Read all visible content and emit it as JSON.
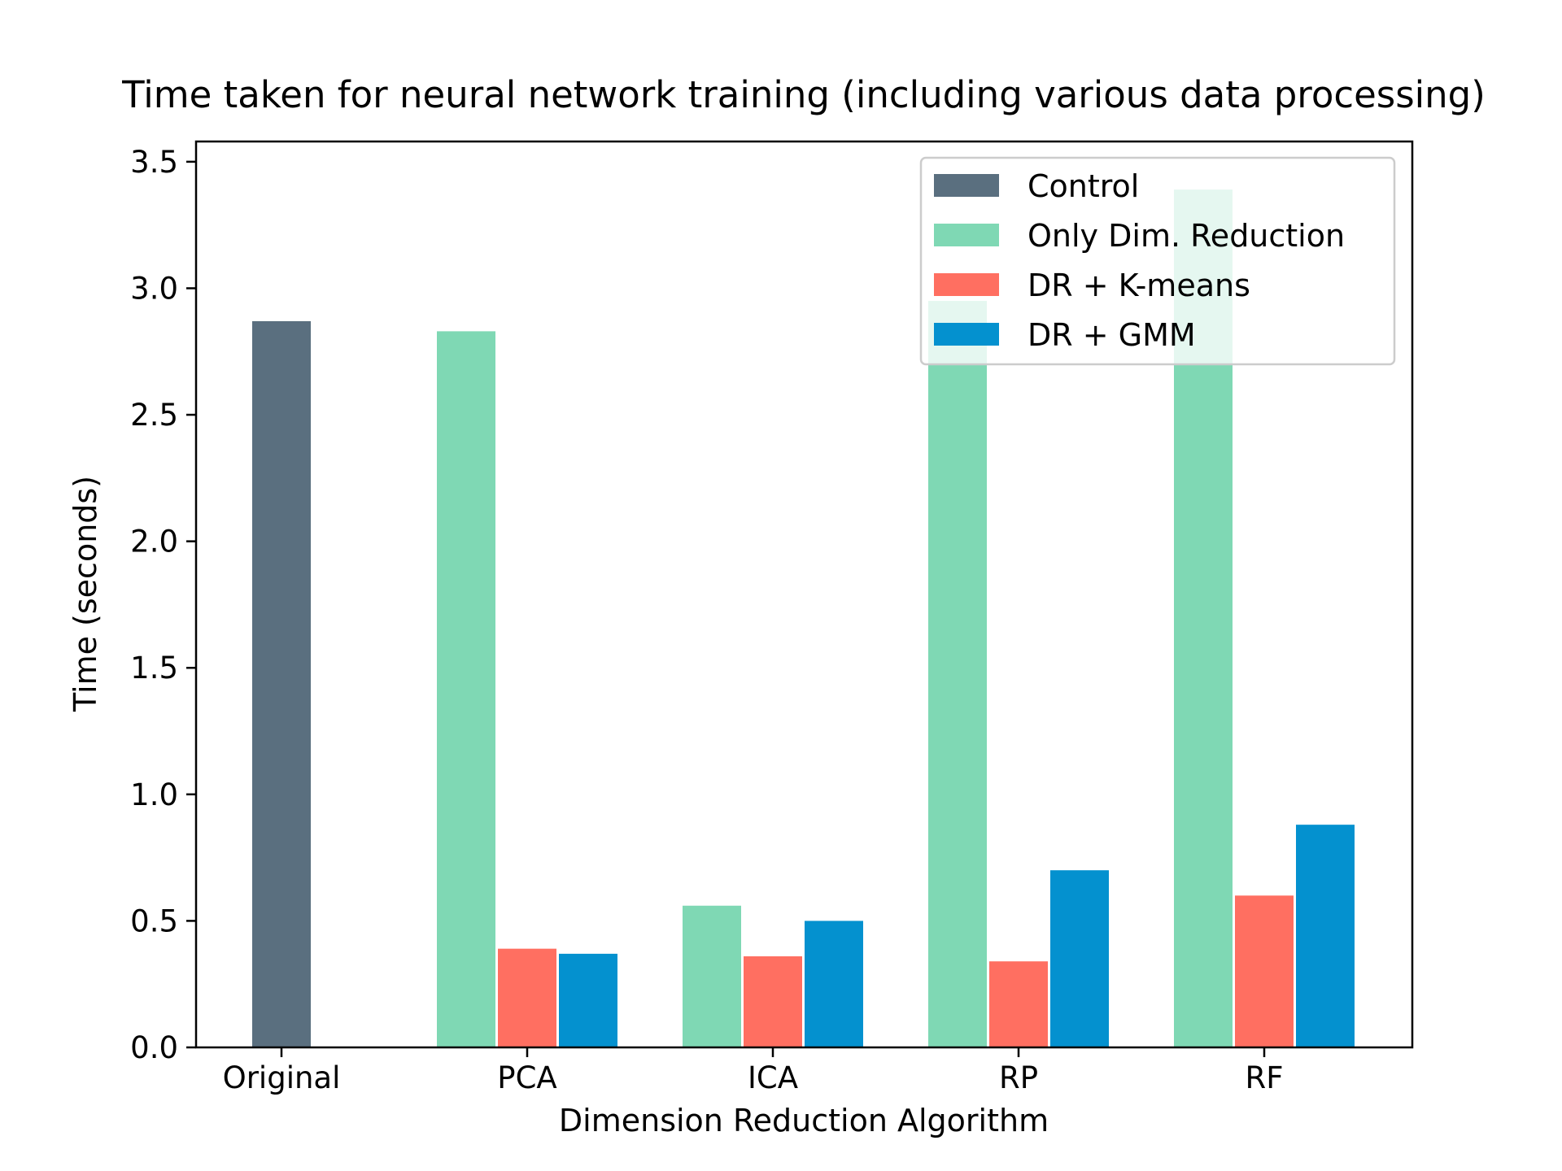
{
  "chart_data": {
    "type": "bar",
    "title": "Time taken for neural network training (including various data processing)",
    "xlabel": "Dimension Reduction Algorithm",
    "ylabel": "Time (seconds)",
    "categories": [
      "Original",
      "PCA",
      "ICA",
      "RP",
      "RF"
    ],
    "ylim": [
      0,
      3.58
    ],
    "yticks": [
      "0.0",
      "0.5",
      "1.0",
      "1.5",
      "2.0",
      "2.5",
      "3.0",
      "3.5"
    ],
    "grid": false,
    "legend_position": "top-right",
    "series": [
      {
        "name": "Control",
        "color": "#5a6f7f",
        "values": [
          2.87,
          null,
          null,
          null,
          null
        ]
      },
      {
        "name": "Only Dim. Reduction",
        "color": "#7fd8b4",
        "values": [
          null,
          2.83,
          0.56,
          2.95,
          3.39
        ]
      },
      {
        "name": "DR + K-means",
        "color": "#ff6f61",
        "values": [
          null,
          0.39,
          0.36,
          0.34,
          0.6
        ]
      },
      {
        "name": "DR + GMM",
        "color": "#0491cf",
        "values": [
          null,
          0.37,
          0.5,
          0.7,
          0.88
        ]
      }
    ]
  }
}
